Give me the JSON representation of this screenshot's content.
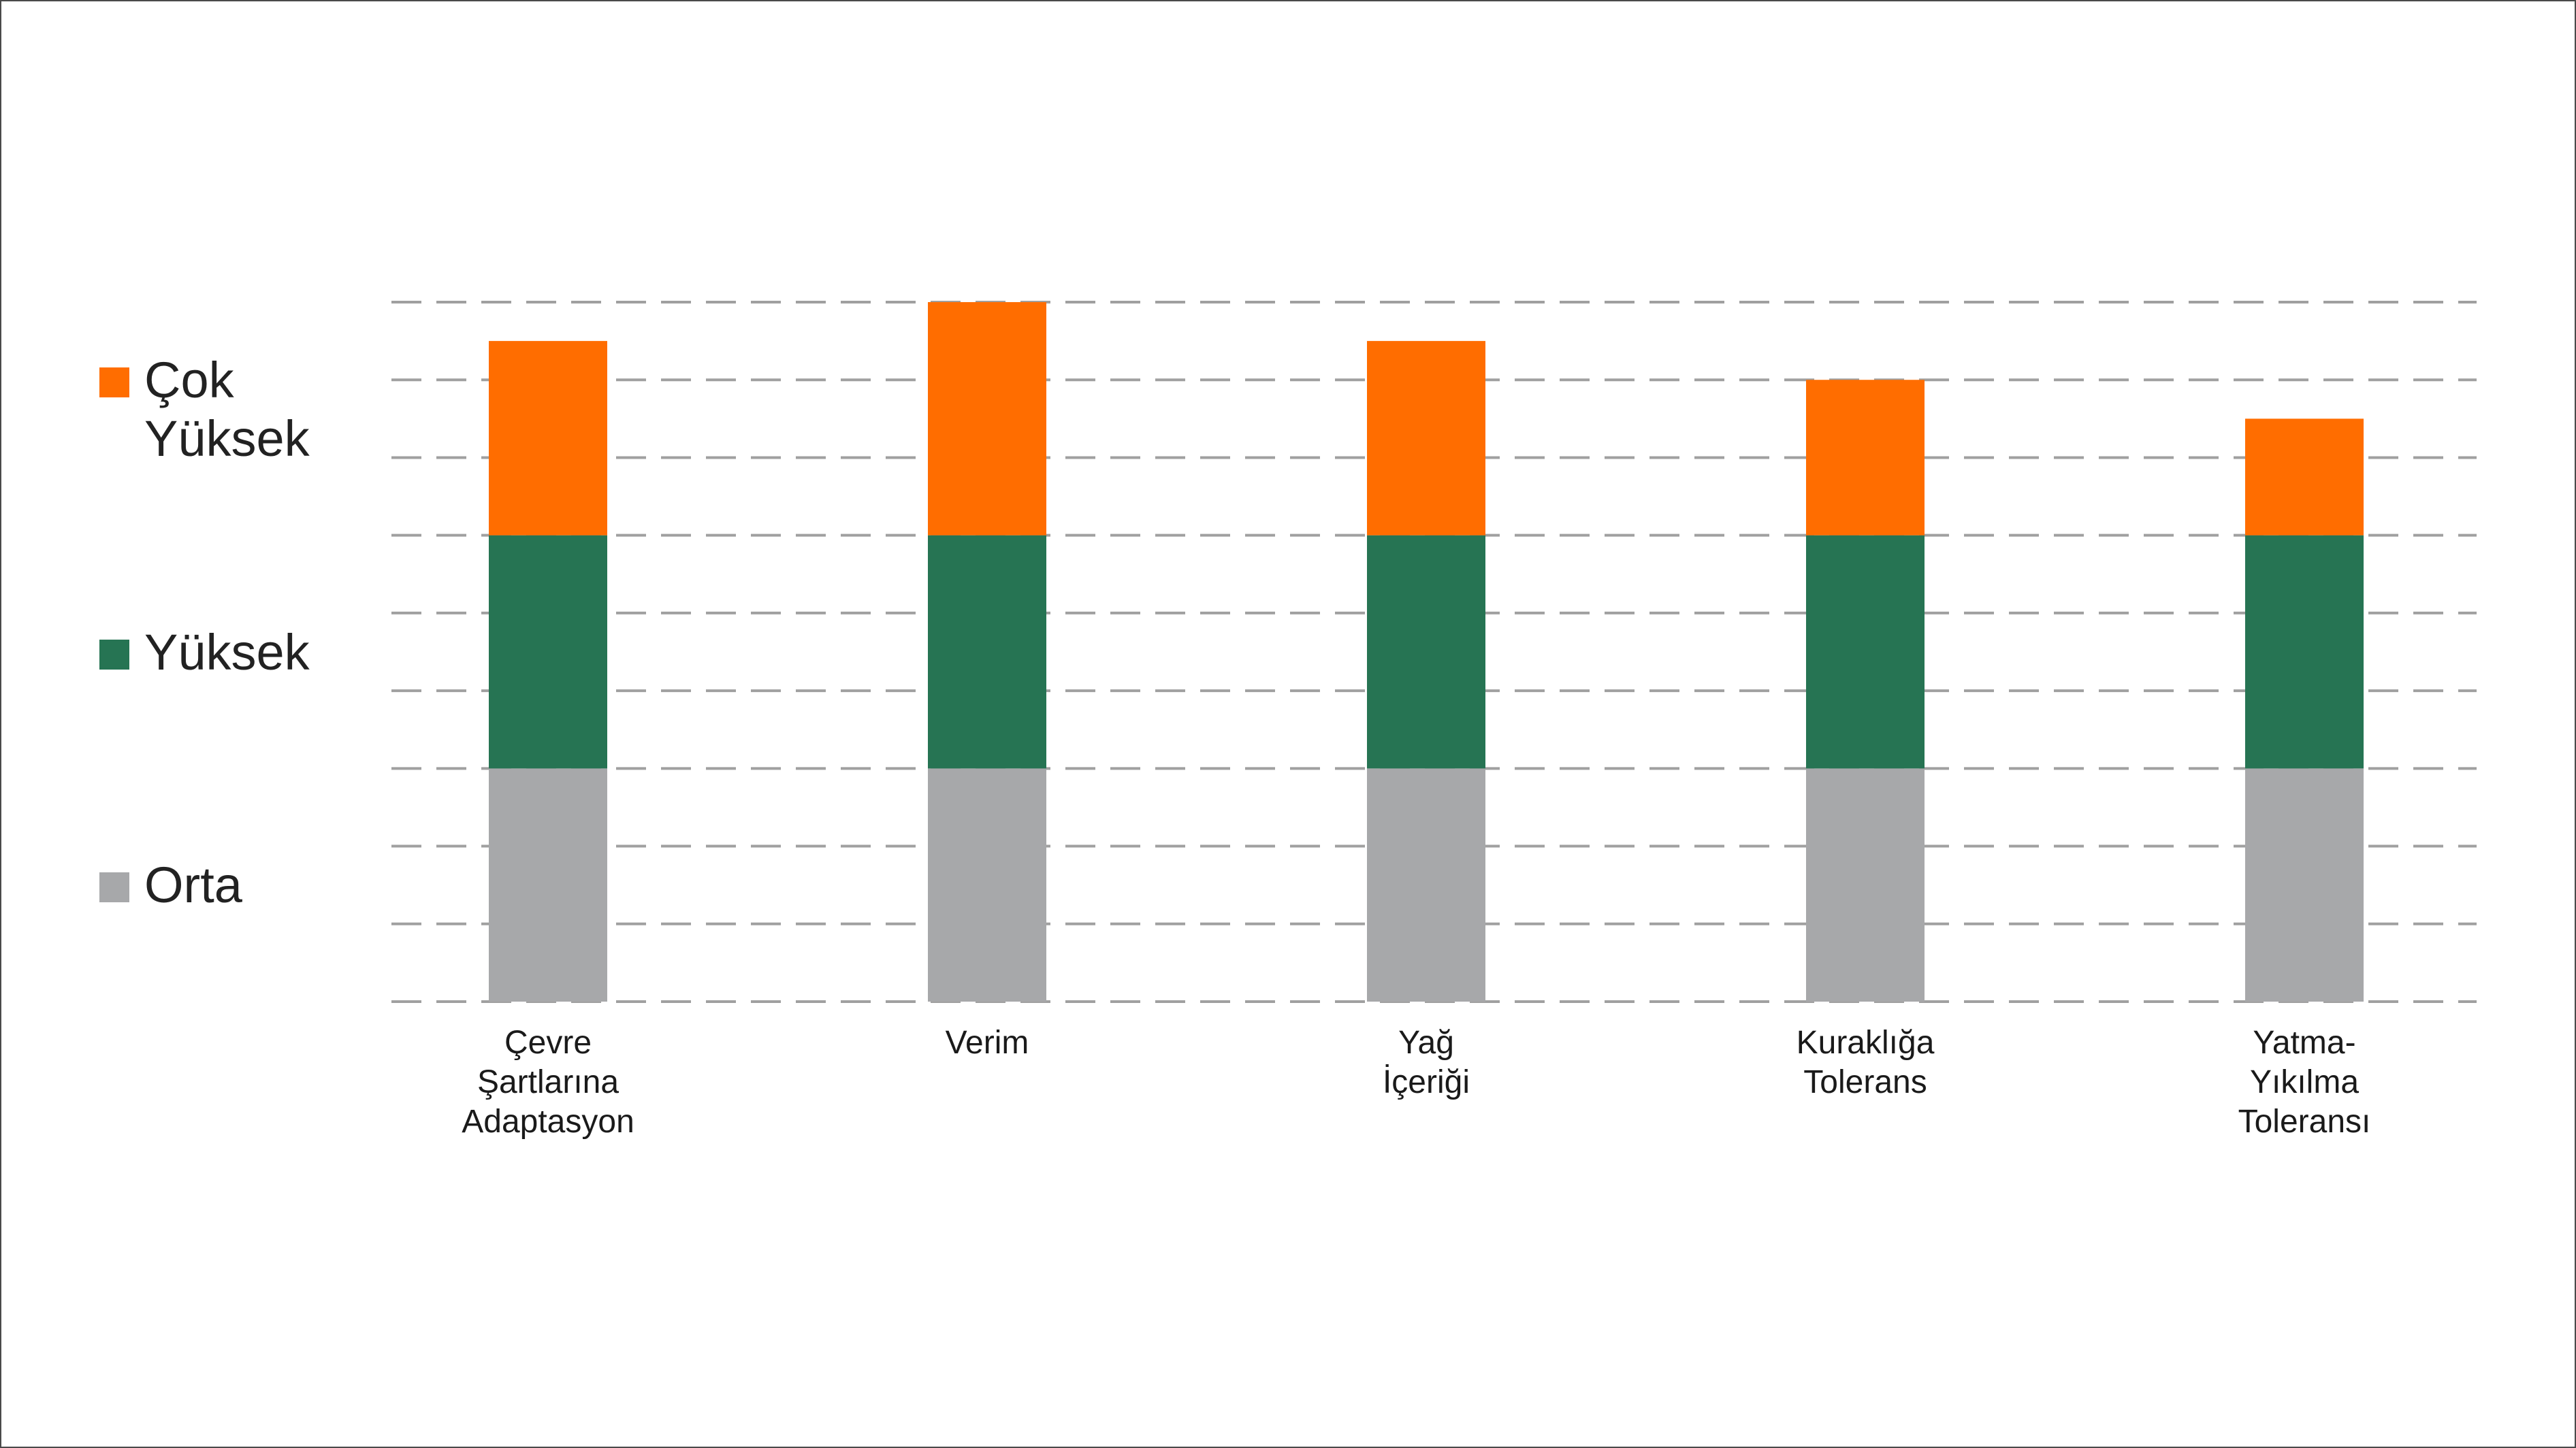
{
  "chart_data": {
    "type": "bar",
    "stacked": true,
    "categories": [
      "Çevre\nŞartlarına\nAdaptasyon",
      "Verim",
      "Yağ\nİçeriği",
      "Kuraklığa\nTolerans",
      "Yatma-\nYıkılma\nToleransı"
    ],
    "series": [
      {
        "name": "Orta",
        "color": "#a7a8aa",
        "values": [
          3,
          3,
          3,
          3,
          3
        ]
      },
      {
        "name": "Yüksek",
        "color": "#267453",
        "values": [
          3,
          3,
          3,
          3,
          3
        ]
      },
      {
        "name": "Çok\nYüksek",
        "color": "#ff6d00",
        "values": [
          2.5,
          3,
          2.5,
          2,
          1.5
        ]
      }
    ],
    "ylim": [
      0,
      9
    ],
    "grid": true,
    "grid_style": "dashed",
    "legend_position": "left"
  }
}
